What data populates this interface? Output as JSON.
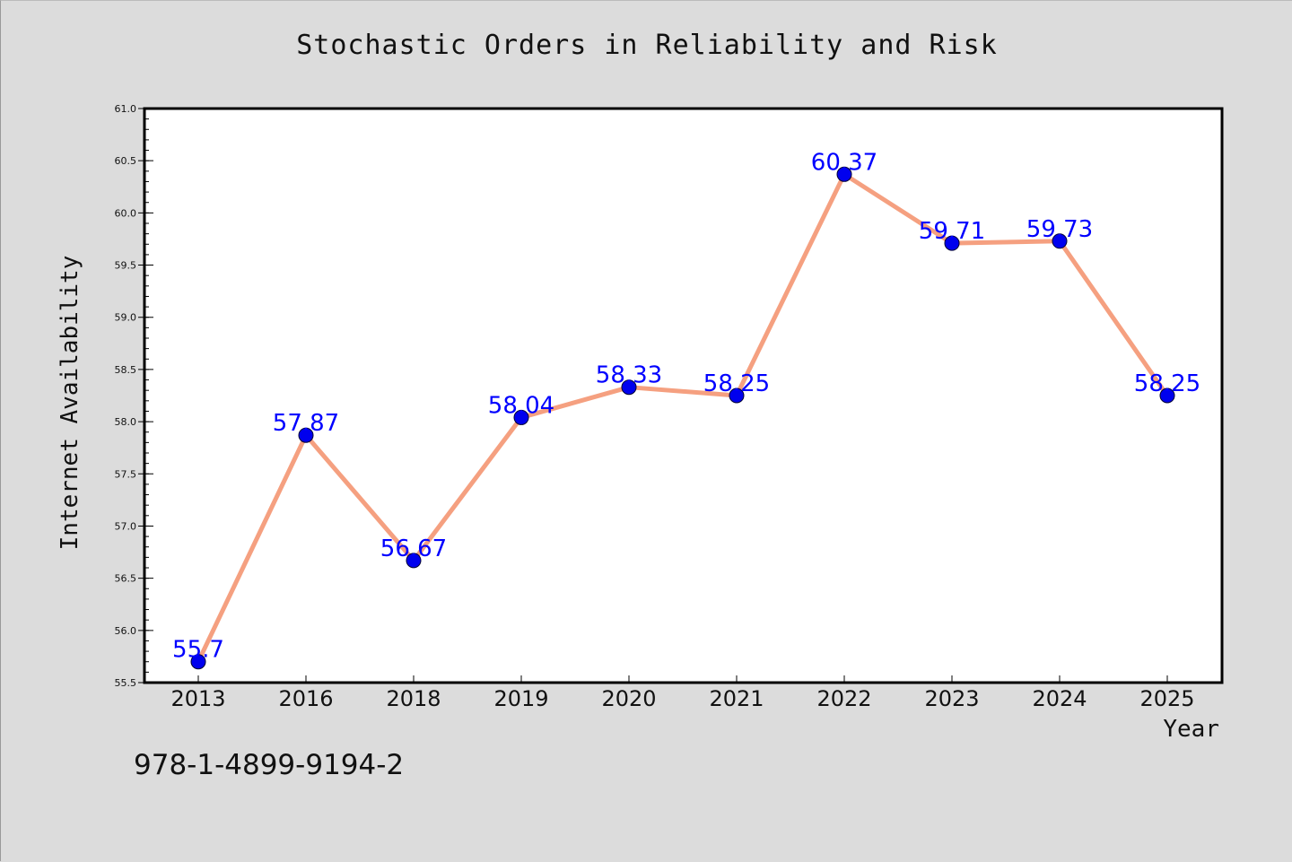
{
  "title": "Stochastic Orders in Reliability and Risk",
  "isbn": "978-1-4899-9194-2",
  "colors": {
    "background": "#dcdcdc",
    "plot_background": "#ffffff",
    "line": "#f5a080",
    "marker": "#0000ee",
    "data_label": "#0000ff"
  },
  "chart_data": {
    "type": "line",
    "title": "Stochastic Orders in Reliability and Risk",
    "xlabel": "Year",
    "ylabel": "Internet Availability",
    "categories": [
      "2013",
      "2016",
      "2018",
      "2019",
      "2020",
      "2021",
      "2022",
      "2023",
      "2024",
      "2025"
    ],
    "values": [
      55.7,
      57.87,
      56.67,
      58.04,
      58.33,
      58.25,
      60.37,
      59.71,
      59.73,
      58.25
    ],
    "data_labels": [
      "55.7",
      "57.87",
      "56.67",
      "58.04",
      "58.33",
      "58.25",
      "60.37",
      "59.71",
      "59.73",
      "58.25"
    ],
    "ylim": [
      55.5,
      61.0
    ],
    "yticks": [
      "55.5",
      "56.0",
      "56.5",
      "57.0",
      "57.5",
      "58.0",
      "58.5",
      "59.0",
      "59.5",
      "60.0",
      "60.5",
      "61.0"
    ],
    "grid": false,
    "legend": "none"
  }
}
